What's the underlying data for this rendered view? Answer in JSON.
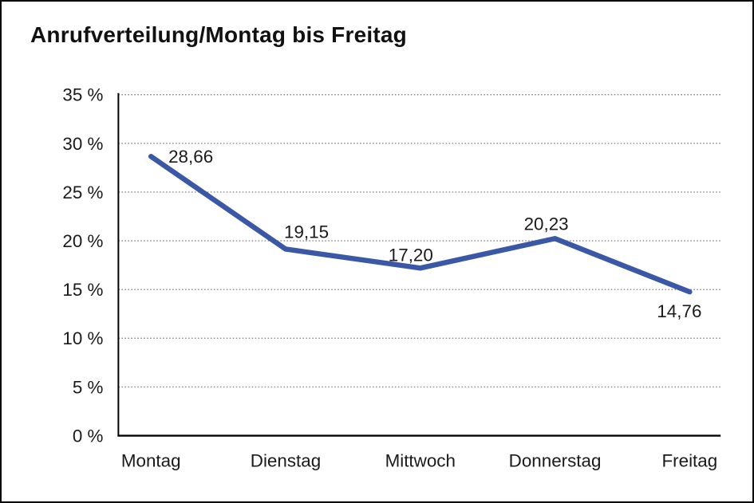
{
  "frame": {
    "background": "#FFFFFF",
    "border_color": "#000000"
  },
  "chart_data": {
    "type": "line",
    "title": "Anrufverteilung/Montag bis Freitag",
    "categories": [
      "Montag",
      "Dienstag",
      "Mittwoch",
      "Donnerstag",
      "Freitag"
    ],
    "values": [
      28.66,
      19.15,
      17.2,
      20.23,
      14.76
    ],
    "point_labels": [
      "28,66",
      "19,15",
      "17,20",
      "20,23",
      "14,76"
    ],
    "y_ticks": [
      {
        "value": 0,
        "label": "0 %"
      },
      {
        "value": 5,
        "label": "5 %"
      },
      {
        "value": 10,
        "label": "10 %"
      },
      {
        "value": 15,
        "label": "15 %"
      },
      {
        "value": 20,
        "label": "20 %"
      },
      {
        "value": 25,
        "label": "25 %"
      },
      {
        "value": 30,
        "label": "30 %"
      },
      {
        "value": 35,
        "label": "35 %"
      }
    ],
    "ylim": [
      0,
      35
    ],
    "xlabel": "",
    "ylabel": "",
    "grid": "horizontal dotted",
    "legend": "none",
    "colors": {
      "line": "#3A58A5",
      "text": "#1A1A1A",
      "grid": "#8C8C8C",
      "axis": "#000000"
    }
  }
}
